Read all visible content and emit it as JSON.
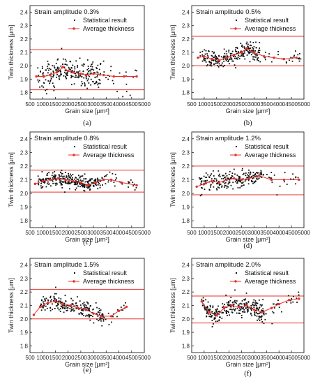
{
  "chart_data": [
    {
      "panel_label": "(a)",
      "type": "scatter",
      "title": "Strain amplitude 0.3%",
      "xlabel": "Grain size [μm²]",
      "ylabel": "Twin thickness [μm]",
      "xlim": [
        500,
        5000
      ],
      "ylim": [
        1.75,
        2.45
      ],
      "x_ticks": [
        500,
        1000,
        1500,
        2000,
        2500,
        3000,
        3500,
        4000,
        4500,
        5000
      ],
      "y_ticks": [
        1.8,
        1.9,
        2.0,
        2.1,
        2.2,
        2.3,
        2.4
      ],
      "bounds": [
        1.82,
        2.12
      ],
      "legend": [
        "Statistical result",
        "Average thickness"
      ],
      "average_thickness": {
        "x": [
          750,
          1050,
          1300,
          1550,
          1800,
          2000,
          2200,
          2500,
          2700,
          3000,
          3400,
          3800,
          4200,
          4700
        ],
        "y": [
          1.92,
          1.92,
          1.93,
          1.95,
          1.99,
          1.96,
          1.95,
          1.94,
          1.93,
          1.94,
          1.93,
          1.92,
          1.92,
          1.92
        ]
      },
      "scatter": {
        "x_range": [
          800,
          4700
        ],
        "center": 1.93,
        "spread": 0.09,
        "count": 250
      }
    },
    {
      "panel_label": "(b)",
      "type": "scatter",
      "title": "Strain amplitude 0.5%",
      "xlabel": "Grain size [μm²]",
      "ylabel": "Twin thickness [μm]",
      "xlim": [
        500,
        5000
      ],
      "ylim": [
        1.75,
        2.45
      ],
      "x_ticks": [
        500,
        1000,
        1500,
        2000,
        2500,
        3000,
        3500,
        4000,
        4500,
        5000
      ],
      "y_ticks": [
        1.8,
        1.9,
        2.0,
        2.1,
        2.2,
        2.3,
        2.4
      ],
      "bounds": [
        2.0,
        2.22
      ],
      "legend": [
        "Statistical result",
        "Average thickness"
      ],
      "average_thickness": {
        "x": [
          750,
          1000,
          1300,
          1600,
          1900,
          2200,
          2500,
          2700,
          3000,
          3400,
          3800,
          4200,
          4700
        ],
        "y": [
          2.06,
          2.07,
          2.05,
          2.04,
          2.06,
          2.08,
          2.1,
          2.13,
          2.1,
          2.07,
          2.06,
          2.05,
          2.06
        ]
      },
      "scatter": {
        "x_range": [
          800,
          4900
        ],
        "center": 2.07,
        "spread": 0.06,
        "count": 260
      }
    },
    {
      "panel_label": "(c)",
      "type": "scatter",
      "title": "Strain amplitude 0.8%",
      "xlabel": "Grain size [μm²]",
      "ylabel": "Twin thickness [μm]",
      "xlim": [
        500,
        5000
      ],
      "ylim": [
        1.75,
        2.45
      ],
      "x_ticks": [
        500,
        1000,
        1500,
        2000,
        2500,
        3000,
        3500,
        4000,
        4500,
        5000
      ],
      "y_ticks": [
        1.8,
        1.9,
        2.0,
        2.1,
        2.2,
        2.3,
        2.4
      ],
      "bounds": [
        2.01,
        2.17
      ],
      "legend": [
        "Statistical result",
        "Average thickness"
      ],
      "average_thickness": {
        "x": [
          700,
          1000,
          1300,
          1600,
          1900,
          2200,
          2500,
          2800,
          3100,
          3400,
          3700,
          4100,
          4700
        ],
        "y": [
          2.07,
          2.09,
          2.1,
          2.11,
          2.1,
          2.09,
          2.08,
          2.06,
          2.08,
          2.1,
          2.1,
          2.08,
          2.06
        ]
      },
      "scatter": {
        "x_range": [
          800,
          4700
        ],
        "center": 2.09,
        "spread": 0.05,
        "count": 300
      }
    },
    {
      "panel_label": "(d)",
      "type": "scatter",
      "title": "Strain amplitude 1.2%",
      "xlabel": "Grain size [μm²]",
      "ylabel": "Twin thickness [μm]",
      "xlim": [
        500,
        5000
      ],
      "ylim": [
        1.75,
        2.45
      ],
      "x_ticks": [
        500,
        1000,
        1500,
        2000,
        2500,
        3000,
        3500,
        4000,
        4500,
        5000
      ],
      "y_ticks": [
        1.8,
        1.9,
        2.0,
        2.1,
        2.2,
        2.3,
        2.4
      ],
      "bounds": [
        1.99,
        2.2
      ],
      "legend": [
        "Statistical result",
        "Average thickness"
      ],
      "average_thickness": {
        "x": [
          700,
          1000,
          1300,
          1600,
          1900,
          2200,
          2500,
          2800,
          3200,
          3700,
          4200,
          4800
        ],
        "y": [
          2.05,
          2.07,
          2.09,
          2.08,
          2.1,
          2.11,
          2.1,
          2.11,
          2.13,
          2.1,
          2.1,
          2.1
        ]
      },
      "scatter": {
        "x_range": [
          800,
          4800
        ],
        "center": 2.09,
        "spread": 0.06,
        "count": 230
      }
    },
    {
      "panel_label": "(e)",
      "type": "scatter",
      "title": "Strain amplitude 1.5%",
      "xlabel": "Grain size [μm²]",
      "ylabel": "Twin thickness [μm]",
      "xlim": [
        500,
        5000
      ],
      "ylim": [
        1.75,
        2.45
      ],
      "x_ticks": [
        500,
        1000,
        1500,
        2000,
        2500,
        3000,
        3500,
        4000,
        4500,
        5000
      ],
      "y_ticks": [
        1.8,
        1.9,
        2.0,
        2.1,
        2.2,
        2.3,
        2.4
      ],
      "bounds": [
        2.0,
        2.22
      ],
      "legend": [
        "Statistical result",
        "Average thickness"
      ],
      "average_thickness": {
        "x": [
          650,
          900,
          1200,
          1500,
          1800,
          2100,
          2400,
          2700,
          3000,
          3300,
          3700,
          4000,
          4300
        ],
        "y": [
          2.03,
          2.09,
          2.12,
          2.13,
          2.11,
          2.1,
          2.08,
          2.07,
          2.04,
          2.02,
          2.02,
          2.06,
          2.09
        ]
      },
      "scatter": {
        "x_range": [
          900,
          4300
        ],
        "center": 2.09,
        "spread": 0.06,
        "count": 240
      }
    },
    {
      "panel_label": "(f)",
      "type": "scatter",
      "title": "Strain amplitude 2.0%",
      "xlabel": "Grain size [μm²]",
      "ylabel": "Twin thickness [μm]",
      "xlim": [
        500,
        5000
      ],
      "ylim": [
        1.75,
        2.45
      ],
      "x_ticks": [
        500,
        1000,
        1500,
        2000,
        2500,
        3000,
        3500,
        4000,
        4500,
        5000
      ],
      "y_ticks": [
        1.8,
        1.9,
        2.0,
        2.1,
        2.2,
        2.3,
        2.4
      ],
      "bounds": [
        1.97,
        2.17
      ],
      "legend": [
        "Statistical result",
        "Average thickness"
      ],
      "average_thickness": {
        "x": [
          900,
          1200,
          1500,
          1800,
          2100,
          2400,
          2700,
          3000,
          3300,
          3700,
          4000,
          4400,
          4800
        ],
        "y": [
          2.13,
          2.05,
          2.03,
          2.08,
          2.1,
          2.09,
          2.1,
          2.07,
          2.05,
          2.08,
          2.11,
          2.14,
          2.15
        ]
      },
      "scatter": {
        "x_range": [
          900,
          4800
        ],
        "center": 2.08,
        "spread": 0.06,
        "count": 300
      }
    }
  ]
}
